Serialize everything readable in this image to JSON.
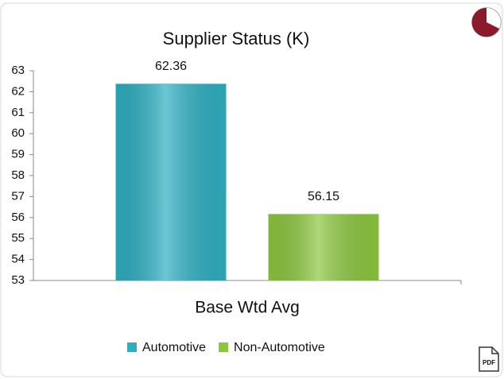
{
  "chart_data": {
    "type": "bar",
    "title": "Supplier Status (K)",
    "categories": [
      "Base Wtd Avg"
    ],
    "series": [
      {
        "name": "Automotive",
        "color": "#2eaec0",
        "values": [
          62.36
        ]
      },
      {
        "name": "Non-Automotive",
        "color": "#8cc63f",
        "values": [
          56.15
        ]
      }
    ],
    "ylim": [
      53,
      63
    ],
    "yticks": [
      53,
      54,
      55,
      56,
      57,
      58,
      59,
      60,
      61,
      62,
      63
    ],
    "grid": false,
    "legend": "bottom"
  },
  "export_label": "PDF"
}
